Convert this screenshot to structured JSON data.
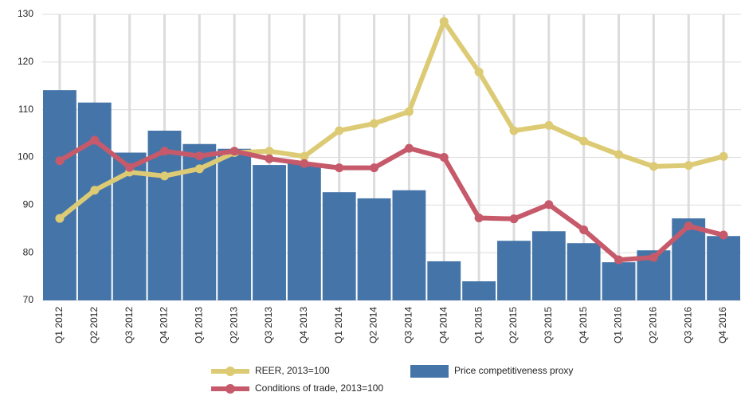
{
  "chart_data": {
    "type": "bar",
    "categories": [
      "Q1 2012",
      "Q2 2012",
      "Q3 2012",
      "Q4 2012",
      "Q1 2013",
      "Q2 2013",
      "Q3 2013",
      "Q4 2013",
      "Q1 2014",
      "Q2 2014",
      "Q3 2014",
      "Q4 2014",
      "Q1 2015",
      "Q2 2015",
      "Q3 2015",
      "Q4 2015",
      "Q1 2016",
      "Q2 2016",
      "Q3 2016",
      "Q4 2016"
    ],
    "series": [
      {
        "name": "REER, 2013=100",
        "type": "line",
        "color": "#dccb74",
        "values": [
          87.2,
          93.1,
          96.9,
          96.1,
          97.6,
          101.0,
          101.3,
          100.2,
          105.6,
          107.1,
          109.6,
          128.5,
          117.9,
          105.6,
          106.7,
          103.4,
          100.6,
          98.1,
          98.3,
          100.2
        ]
      },
      {
        "name": "Conditions of trade, 2013=100",
        "type": "line",
        "color": "#c65a6a",
        "values": [
          99.3,
          103.6,
          97.9,
          101.3,
          100.3,
          101.3,
          99.7,
          98.7,
          97.8,
          97.8,
          101.9,
          100.0,
          87.3,
          87.1,
          90.1,
          84.8,
          78.5,
          79.0,
          85.6,
          83.7
        ]
      },
      {
        "name": "Price competitiveness proxy",
        "type": "bar",
        "color": "#4575a8",
        "values": [
          114.1,
          111.5,
          101.0,
          105.6,
          102.8,
          101.8,
          98.4,
          98.7,
          92.7,
          91.4,
          93.1,
          78.2,
          74.0,
          82.5,
          84.5,
          82.0,
          78.0,
          80.5,
          87.2,
          83.5
        ]
      }
    ],
    "ylim": [
      70,
      130
    ],
    "yticks": [
      70,
      80,
      90,
      100,
      110,
      120,
      130
    ],
    "grid": true
  }
}
